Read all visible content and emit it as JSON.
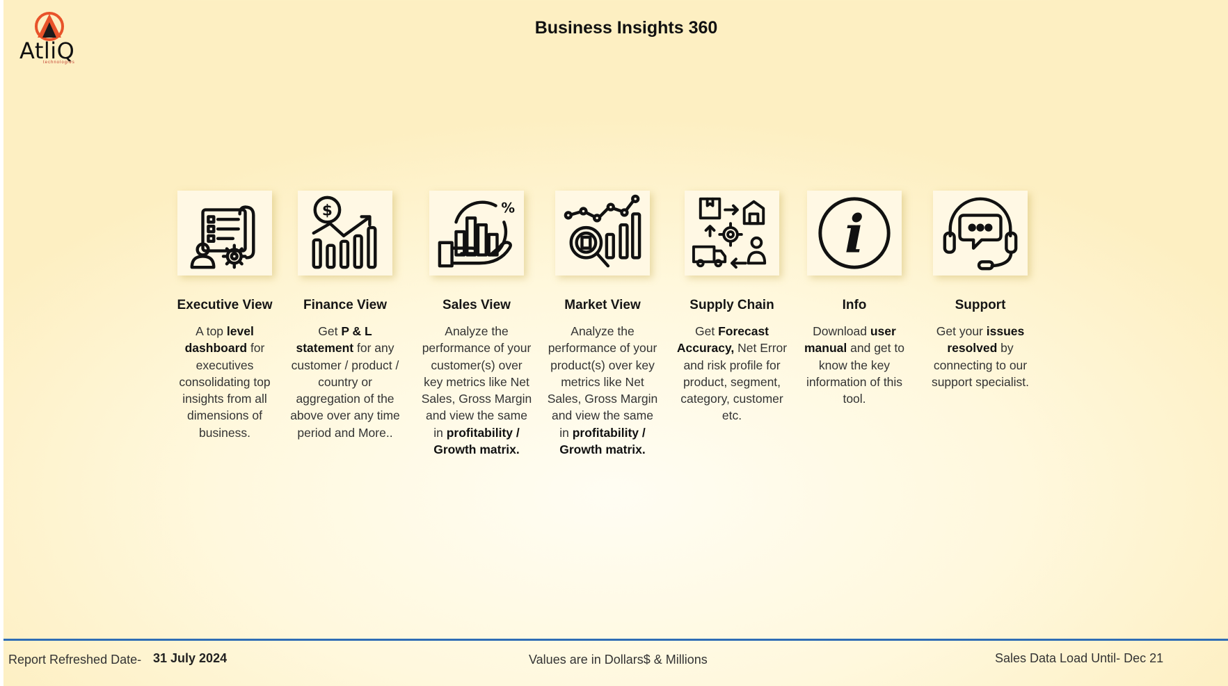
{
  "brand": {
    "name": "AtliQ",
    "tagline": "technologies",
    "colors": {
      "orange": "#e8532a",
      "dark": "#1a1a1a"
    }
  },
  "header": {
    "title": "Business Insights 360"
  },
  "cards": [
    {
      "icon": "checklist-gear-icon",
      "title": "Executive View",
      "desc": [
        [
          "A top ",
          false
        ],
        [
          "level dashboard",
          true
        ],
        [
          " for executives consolidating top insights from all dimensions of business.",
          false
        ]
      ]
    },
    {
      "icon": "dollar-growth-chart-icon",
      "title": "Finance View",
      "desc": [
        [
          "Get ",
          false
        ],
        [
          " P & L statement",
          true
        ],
        [
          " for any customer / product / country or aggregation of the above over any time period and More..",
          false
        ]
      ]
    },
    {
      "icon": "hand-chart-percent-icon",
      "title": "Sales View",
      "desc": [
        [
          "Analyze the performance of your customer(s) over key metrics like Net Sales, Gross Margin and view the same in ",
          false
        ],
        [
          "profitability / Growth matrix.",
          true
        ]
      ]
    },
    {
      "icon": "magnifier-chart-icon",
      "title": "Market View",
      "desc": [
        [
          "Analyze the performance of your product(s) over key metrics like Net Sales, Gross Margin and view the same in ",
          false
        ],
        [
          "profitability / Growth matrix.",
          true
        ]
      ]
    },
    {
      "icon": "supply-chain-icon",
      "title": "Supply Chain",
      "desc": [
        [
          "Get ",
          false
        ],
        [
          "Forecast Accuracy,",
          true
        ],
        [
          " Net Error and risk profile for product, segment, category, customer etc.",
          false
        ]
      ]
    },
    {
      "icon": "info-icon",
      "title": "Info",
      "desc": [
        [
          "Download ",
          false
        ],
        [
          "user manual",
          true
        ],
        [
          " and get to know the key information of this tool.",
          false
        ]
      ]
    },
    {
      "icon": "headset-chat-icon",
      "title": "Support",
      "desc": [
        [
          "Get your ",
          false
        ],
        [
          "issues resolved",
          true
        ],
        [
          " by connecting to our support specialist.",
          false
        ]
      ]
    }
  ],
  "footer": {
    "refreshed_label": "Report Refreshed Date-",
    "refreshed_date": "31 July 2024",
    "units_note": "Values are in Dollars$ &  Millions",
    "load_until": "Sales Data Load Until- Dec 21",
    "accent_color": "#2f6db5"
  }
}
